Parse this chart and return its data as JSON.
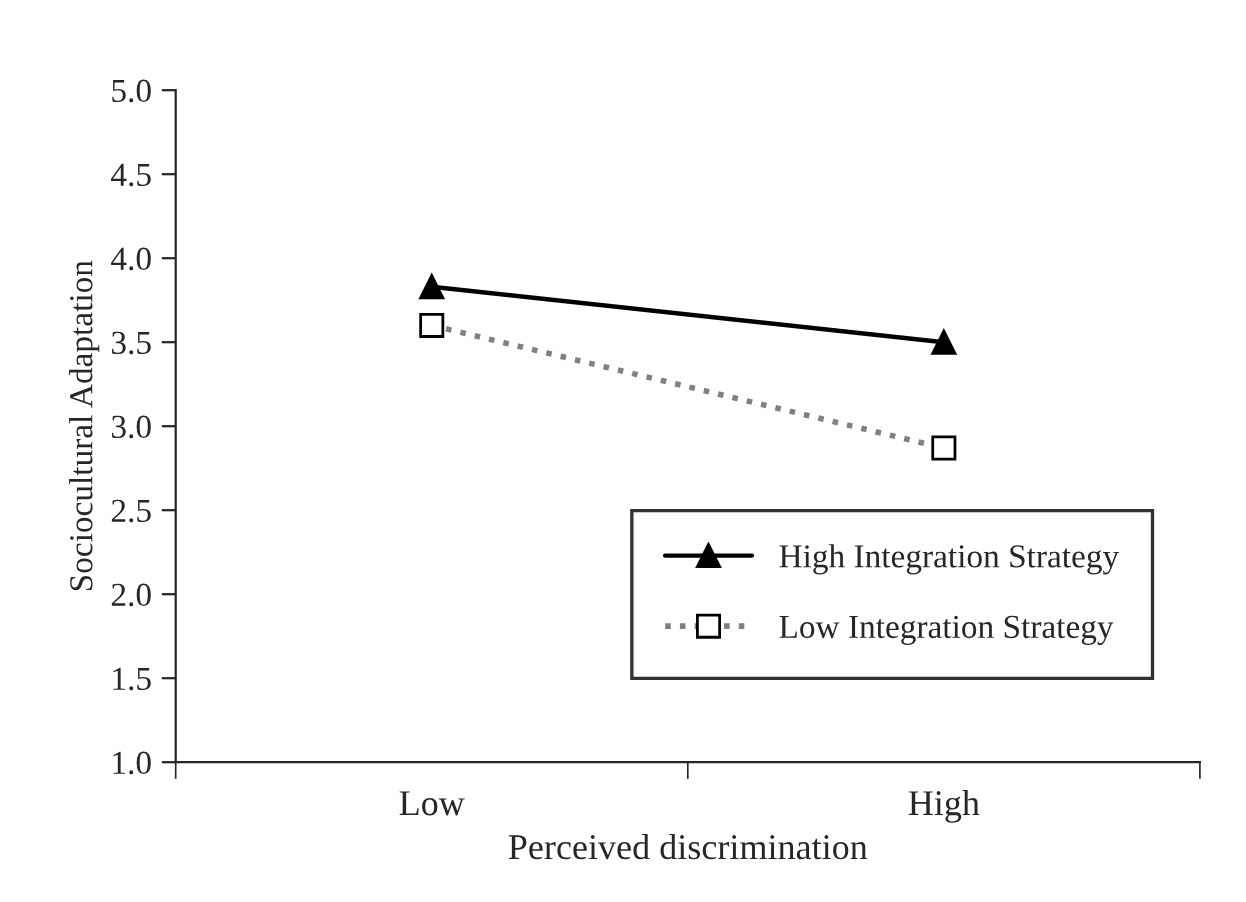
{
  "chart_data": {
    "type": "line",
    "xlabel": "Perceived discrimination",
    "ylabel": "Sociocultural Adaptation",
    "categories": [
      "Low",
      "High"
    ],
    "series": [
      {
        "name": "High Integration Strategy",
        "color": "#000000",
        "values": [
          3.83,
          3.5
        ],
        "marker": "triangle",
        "line_style": "solid"
      },
      {
        "name": "Low Integration Strategy",
        "color": "#808080",
        "values": [
          3.6,
          2.87
        ],
        "marker": "square",
        "line_style": "dotted"
      }
    ],
    "ylim": [
      1.0,
      5.0
    ],
    "yticks": [
      {
        "value": 1.0,
        "label": "1.0"
      },
      {
        "value": 1.5,
        "label": "1.5"
      },
      {
        "value": 2.0,
        "label": "2.0"
      },
      {
        "value": 2.5,
        "label": "2.5"
      },
      {
        "value": 3.0,
        "label": "3.0"
      },
      {
        "value": 3.5,
        "label": "3.5"
      },
      {
        "value": 4.0,
        "label": "4.0"
      },
      {
        "value": 4.5,
        "label": "4.5"
      },
      {
        "value": 5.0,
        "label": "5.0"
      }
    ],
    "legend": "bottom right",
    "grid": false
  }
}
